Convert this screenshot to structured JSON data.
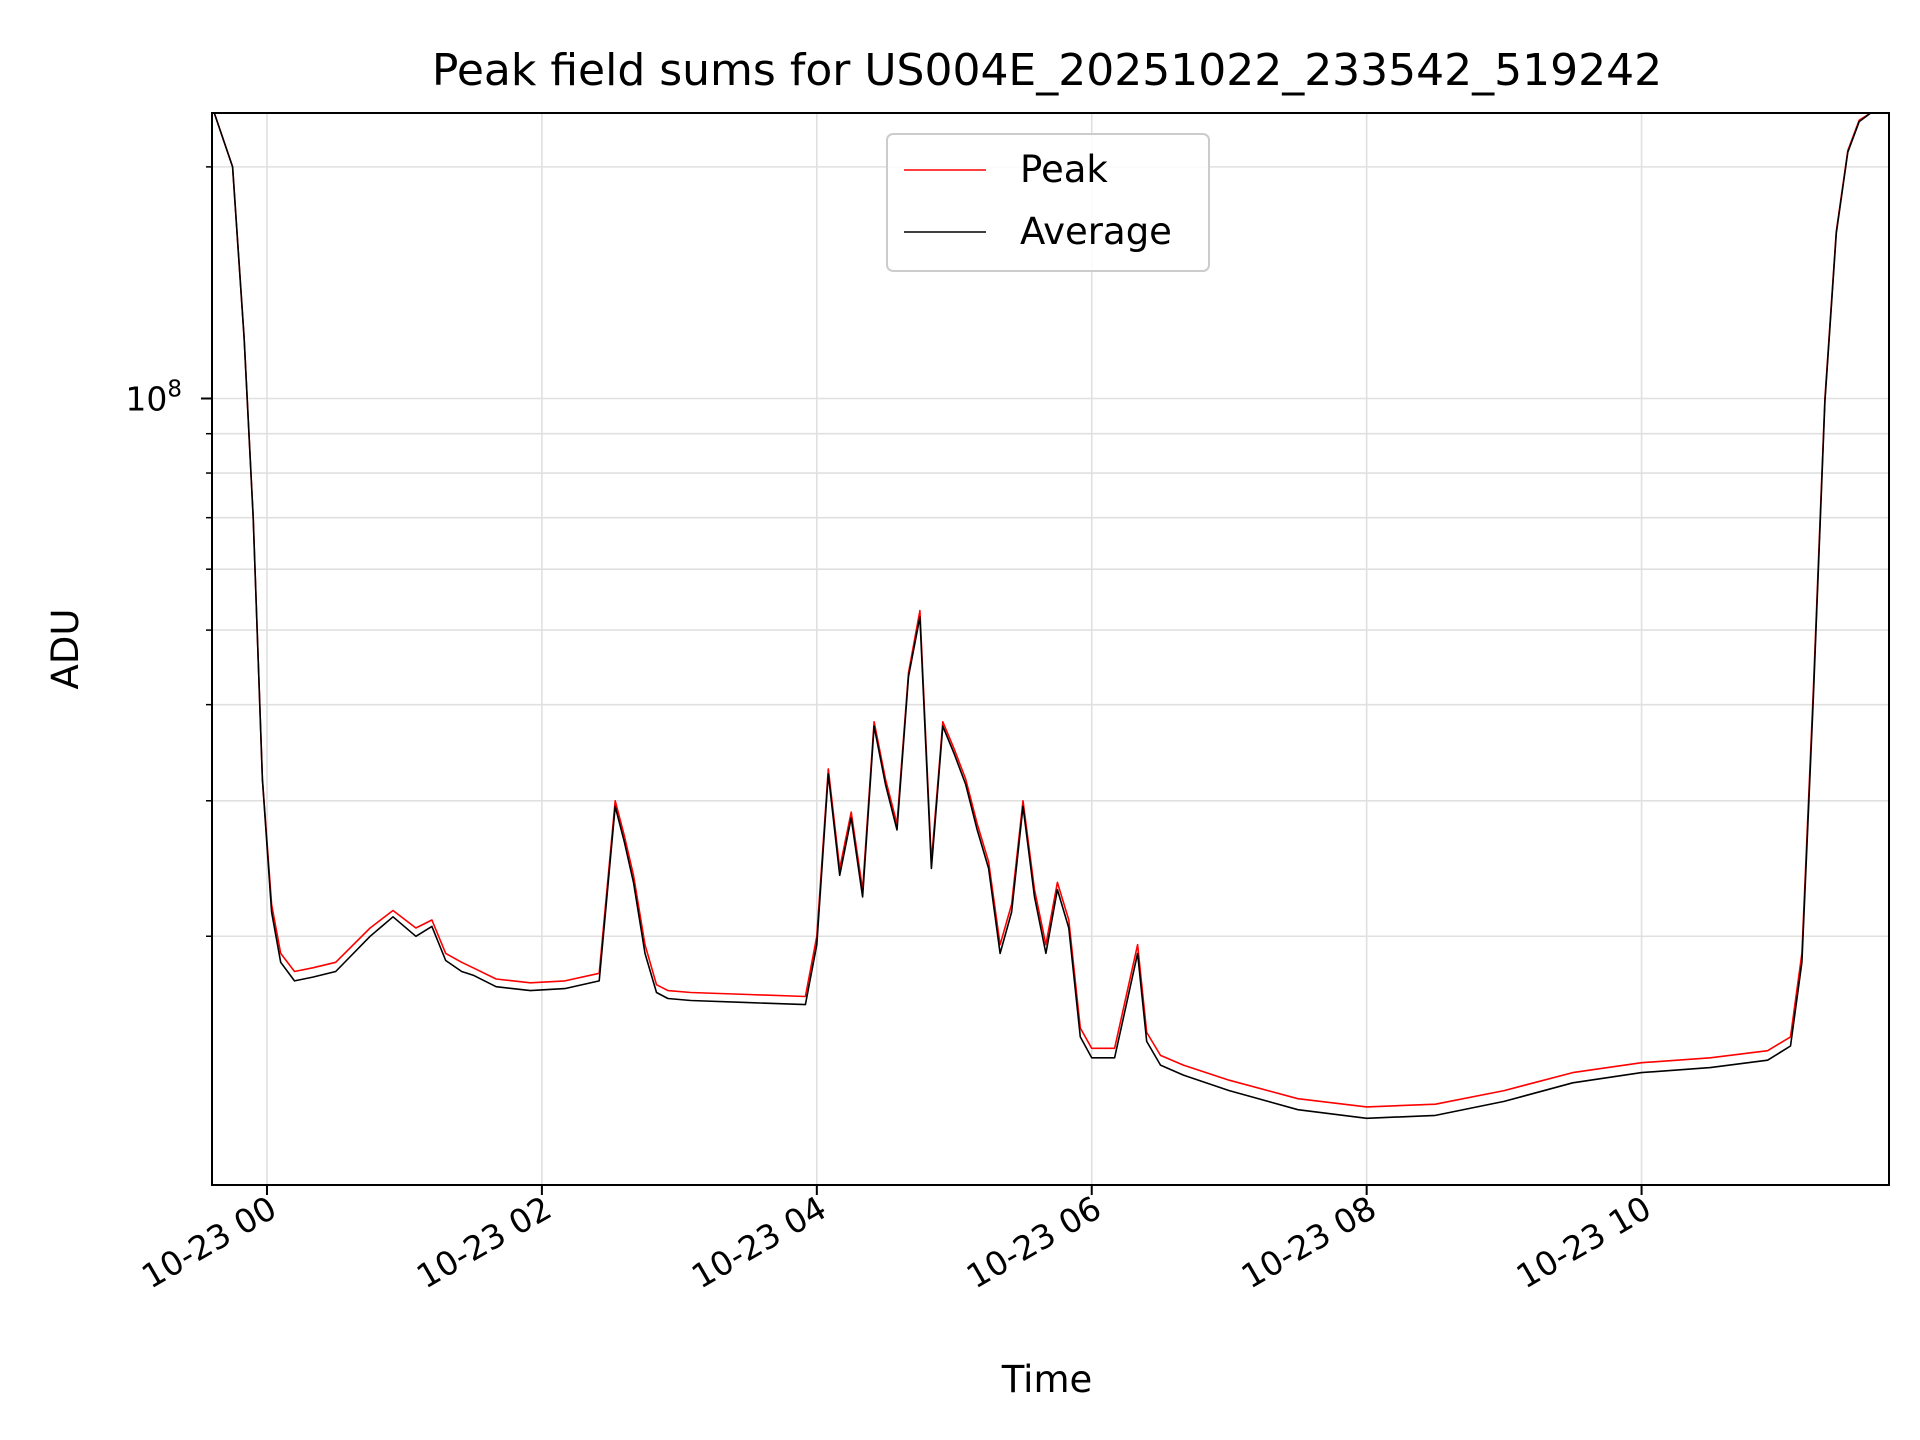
{
  "chart_data": {
    "type": "line",
    "title": "Peak field sums for US004E_20251022_233542_519242",
    "xlabel": "Time",
    "ylabel": "ADU",
    "yscale": "log",
    "xlim": [
      "2025-10-22 23:36",
      "2025-10-23 11:48"
    ],
    "ylim": [
      9500000,
      235000000
    ],
    "x_ticks": [
      {
        "t": "2025-10-23 00:00",
        "label": "10-23 00"
      },
      {
        "t": "2025-10-23 02:00",
        "label": "10-23 02"
      },
      {
        "t": "2025-10-23 04:00",
        "label": "10-23 04"
      },
      {
        "t": "2025-10-23 06:00",
        "label": "10-23 06"
      },
      {
        "t": "2025-10-23 08:00",
        "label": "10-23 08"
      },
      {
        "t": "2025-10-23 10:00",
        "label": "10-23 10"
      }
    ],
    "y_major_ticks": [
      {
        "value": 100000000,
        "base": "10",
        "exp": "8"
      }
    ],
    "y_minor_ticks": [
      20000000,
      30000000,
      40000000,
      50000000,
      60000000,
      70000000,
      80000000,
      90000000,
      200000000
    ],
    "grid": true,
    "legend": "top-center",
    "series": [
      {
        "name": "Peak",
        "color": "#ff0000",
        "x": [
          "2025-10-22 23:37",
          "2025-10-22 23:45",
          "2025-10-22 23:50",
          "2025-10-22 23:54",
          "2025-10-22 23:58",
          "2025-10-23 00:02",
          "2025-10-23 00:06",
          "2025-10-23 00:12",
          "2025-10-23 00:20",
          "2025-10-23 00:30",
          "2025-10-23 00:45",
          "2025-10-23 00:55",
          "2025-10-23 01:05",
          "2025-10-23 01:12",
          "2025-10-23 01:18",
          "2025-10-23 01:25",
          "2025-10-23 01:30",
          "2025-10-23 01:40",
          "2025-10-23 01:55",
          "2025-10-23 02:10",
          "2025-10-23 02:25",
          "2025-10-23 02:32",
          "2025-10-23 02:36",
          "2025-10-23 02:40",
          "2025-10-23 02:45",
          "2025-10-23 02:50",
          "2025-10-23 02:55",
          "2025-10-23 03:05",
          "2025-10-23 03:30",
          "2025-10-23 03:55",
          "2025-10-23 04:00",
          "2025-10-23 04:05",
          "2025-10-23 04:10",
          "2025-10-23 04:15",
          "2025-10-23 04:20",
          "2025-10-23 04:25",
          "2025-10-23 04:30",
          "2025-10-23 04:35",
          "2025-10-23 04:40",
          "2025-10-23 04:45",
          "2025-10-23 04:50",
          "2025-10-23 04:55",
          "2025-10-23 05:00",
          "2025-10-23 05:05",
          "2025-10-23 05:10",
          "2025-10-23 05:15",
          "2025-10-23 05:20",
          "2025-10-23 05:25",
          "2025-10-23 05:30",
          "2025-10-23 05:35",
          "2025-10-23 05:40",
          "2025-10-23 05:45",
          "2025-10-23 05:50",
          "2025-10-23 05:55",
          "2025-10-23 06:00",
          "2025-10-23 06:10",
          "2025-10-23 06:20",
          "2025-10-23 06:24",
          "2025-10-23 06:30",
          "2025-10-23 06:40",
          "2025-10-23 07:00",
          "2025-10-23 07:30",
          "2025-10-23 08:00",
          "2025-10-23 08:30",
          "2025-10-23 09:00",
          "2025-10-23 09:30",
          "2025-10-23 10:00",
          "2025-10-23 10:30",
          "2025-10-23 10:55",
          "2025-10-23 11:05",
          "2025-10-23 11:10",
          "2025-10-23 11:15",
          "2025-10-23 11:20",
          "2025-10-23 11:25",
          "2025-10-23 11:30",
          "2025-10-23 11:35",
          "2025-10-23 11:40",
          "2025-10-23 11:45"
        ],
        "values": [
          235000000,
          200000000,
          120000000,
          70000000,
          32000000,
          22000000,
          19000000,
          18000000,
          18200000,
          18500000,
          20500000,
          21600000,
          20500000,
          21000000,
          19000000,
          18500000,
          18200000,
          17600000,
          17400000,
          17500000,
          17900000,
          30000000,
          27000000,
          24000000,
          19500000,
          17300000,
          17000000,
          16900000,
          16800000,
          16700000,
          20000000,
          33000000,
          24500000,
          29000000,
          23000000,
          38000000,
          32000000,
          28000000,
          44000000,
          53000000,
          25000000,
          38000000,
          35000000,
          32000000,
          28000000,
          25000000,
          19500000,
          22000000,
          30000000,
          23000000,
          19500000,
          23500000,
          21000000,
          15200000,
          14300000,
          14300000,
          19500000,
          15000000,
          14000000,
          13600000,
          13000000,
          12300000,
          12000000,
          12100000,
          12600000,
          13300000,
          13700000,
          13900000,
          14200000,
          14800000,
          19000000,
          42000000,
          100000000,
          165000000,
          210000000,
          230000000,
          235000000,
          235000000
        ]
      },
      {
        "name": "Average",
        "color": "#000000",
        "x": [
          "2025-10-22 23:37",
          "2025-10-22 23:45",
          "2025-10-22 23:50",
          "2025-10-22 23:54",
          "2025-10-22 23:58",
          "2025-10-23 00:02",
          "2025-10-23 00:06",
          "2025-10-23 00:12",
          "2025-10-23 00:20",
          "2025-10-23 00:30",
          "2025-10-23 00:45",
          "2025-10-23 00:55",
          "2025-10-23 01:05",
          "2025-10-23 01:12",
          "2025-10-23 01:18",
          "2025-10-23 01:25",
          "2025-10-23 01:30",
          "2025-10-23 01:40",
          "2025-10-23 01:55",
          "2025-10-23 02:10",
          "2025-10-23 02:25",
          "2025-10-23 02:32",
          "2025-10-23 02:36",
          "2025-10-23 02:40",
          "2025-10-23 02:45",
          "2025-10-23 02:50",
          "2025-10-23 02:55",
          "2025-10-23 03:05",
          "2025-10-23 03:30",
          "2025-10-23 03:55",
          "2025-10-23 04:00",
          "2025-10-23 04:05",
          "2025-10-23 04:10",
          "2025-10-23 04:15",
          "2025-10-23 04:20",
          "2025-10-23 04:25",
          "2025-10-23 04:30",
          "2025-10-23 04:35",
          "2025-10-23 04:40",
          "2025-10-23 04:45",
          "2025-10-23 04:50",
          "2025-10-23 04:55",
          "2025-10-23 05:00",
          "2025-10-23 05:05",
          "2025-10-23 05:10",
          "2025-10-23 05:15",
          "2025-10-23 05:20",
          "2025-10-23 05:25",
          "2025-10-23 05:30",
          "2025-10-23 05:35",
          "2025-10-23 05:40",
          "2025-10-23 05:45",
          "2025-10-23 05:50",
          "2025-10-23 05:55",
          "2025-10-23 06:00",
          "2025-10-23 06:10",
          "2025-10-23 06:20",
          "2025-10-23 06:24",
          "2025-10-23 06:30",
          "2025-10-23 06:40",
          "2025-10-23 07:00",
          "2025-10-23 07:30",
          "2025-10-23 08:00",
          "2025-10-23 08:30",
          "2025-10-23 09:00",
          "2025-10-23 09:30",
          "2025-10-23 10:00",
          "2025-10-23 10:30",
          "2025-10-23 10:55",
          "2025-10-23 11:05",
          "2025-10-23 11:10",
          "2025-10-23 11:15",
          "2025-10-23 11:20",
          "2025-10-23 11:25",
          "2025-10-23 11:30",
          "2025-10-23 11:35",
          "2025-10-23 11:40",
          "2025-10-23 11:45"
        ],
        "values": [
          235000000,
          200000000,
          120000000,
          70000000,
          32000000,
          21500000,
          18500000,
          17500000,
          17700000,
          18000000,
          20000000,
          21200000,
          20000000,
          20600000,
          18600000,
          18000000,
          17800000,
          17200000,
          17000000,
          17100000,
          17500000,
          29500000,
          26500000,
          23500000,
          19000000,
          16900000,
          16600000,
          16500000,
          16400000,
          16300000,
          19500000,
          32500000,
          24000000,
          28500000,
          22500000,
          37500000,
          31500000,
          27500000,
          43500000,
          52000000,
          24500000,
          37500000,
          34500000,
          31500000,
          27500000,
          24500000,
          19000000,
          21500000,
          29500000,
          22500000,
          19000000,
          23000000,
          20500000,
          14800000,
          13900000,
          13900000,
          19000000,
          14600000,
          13600000,
          13200000,
          12600000,
          11900000,
          11600000,
          11700000,
          12200000,
          12900000,
          13300000,
          13500000,
          13800000,
          14400000,
          18500000,
          41000000,
          99000000,
          164000000,
          209000000,
          229000000,
          235000000,
          235000000
        ]
      }
    ]
  }
}
